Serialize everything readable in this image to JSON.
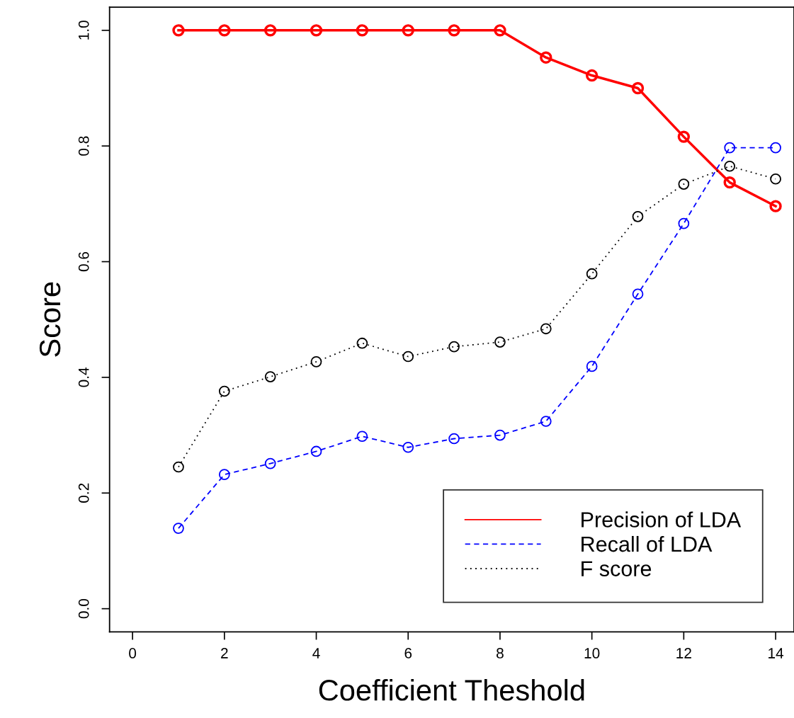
{
  "chart_data": {
    "type": "line",
    "xlabel": "Coefficient Theshold",
    "ylabel": "Score",
    "x": [
      1,
      2,
      3,
      4,
      5,
      6,
      7,
      8,
      9,
      10,
      11,
      12,
      13,
      14
    ],
    "series": [
      {
        "name": "Precision of LDA",
        "color": "#ff0000",
        "line_style": "solid",
        "values": [
          1.0,
          1.0,
          1.0,
          1.0,
          1.0,
          1.0,
          1.0,
          1.0,
          0.953,
          0.922,
          0.9,
          0.816,
          0.737,
          0.696
        ]
      },
      {
        "name": "Recall of LDA",
        "color": "#0000ff",
        "line_style": "dashed",
        "values": [
          0.139,
          0.232,
          0.251,
          0.272,
          0.298,
          0.279,
          0.294,
          0.3,
          0.324,
          0.419,
          0.544,
          0.666,
          0.797,
          0.797
        ]
      },
      {
        "name": "F score",
        "color": "#000000",
        "line_style": "dotted",
        "values": [
          0.245,
          0.376,
          0.401,
          0.427,
          0.459,
          0.436,
          0.453,
          0.461,
          0.484,
          0.579,
          0.678,
          0.734,
          0.765,
          0.743
        ]
      }
    ],
    "marker": "circle",
    "xlim": [
      -0.5,
      14.4
    ],
    "ylim": [
      -0.04,
      1.04
    ],
    "xticks": [
      0,
      2,
      4,
      6,
      8,
      10,
      12,
      14
    ],
    "yticks": [
      {
        "value": 0,
        "label": "0.0"
      },
      {
        "value": 0.2,
        "label": "0.2"
      },
      {
        "value": 0.4,
        "label": "0.4"
      },
      {
        "value": 0.6,
        "label": "0.6"
      },
      {
        "value": 0.8,
        "label": "0.8"
      },
      {
        "value": 1.0,
        "label": "1.0"
      }
    ],
    "grid": false,
    "legend": "bottom right"
  }
}
